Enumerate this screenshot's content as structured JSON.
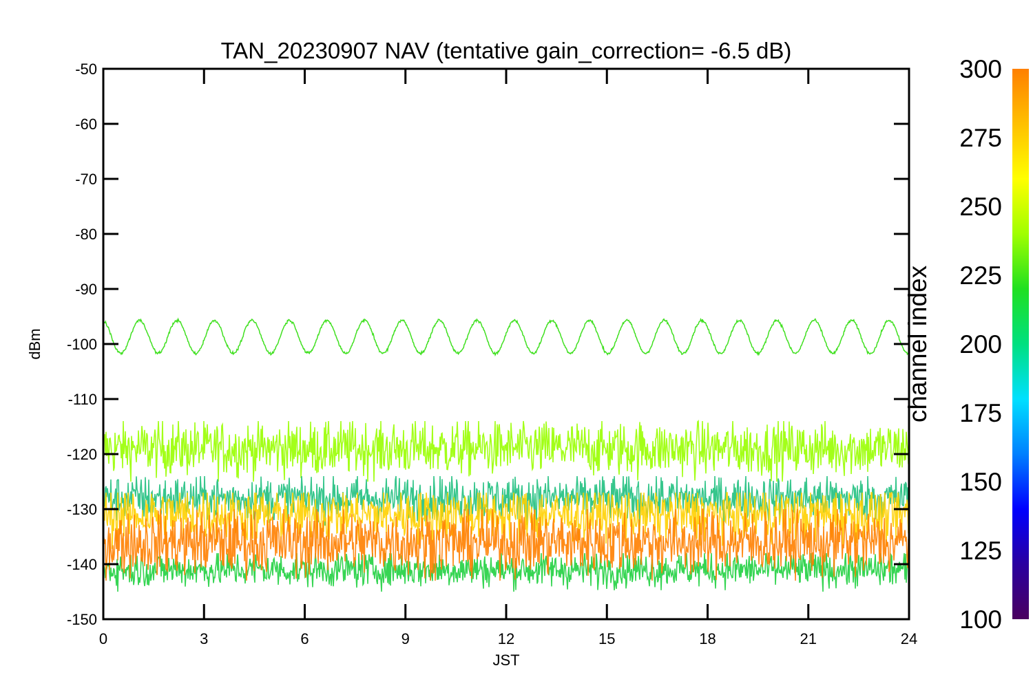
{
  "chart_data": {
    "type": "line",
    "title": "TAN_20230907 NAV (tentative gain_correction= -6.5 dB)",
    "xlabel": "JST",
    "ylabel": "dBm",
    "xlim": [
      0,
      24
    ],
    "ylim": [
      -150,
      -50
    ],
    "x_ticks": [
      "0",
      "3",
      "6",
      "9",
      "12",
      "15",
      "18",
      "21",
      "24"
    ],
    "y_ticks": [
      "-50",
      "-60",
      "-70",
      "-80",
      "-90",
      "-100",
      "-110",
      "-120",
      "-130",
      "-140",
      "-150"
    ],
    "grid": false,
    "colorbar": {
      "label": "channel index",
      "range": [
        100,
        300
      ],
      "ticks": [
        "300",
        "275",
        "250",
        "225",
        "200",
        "175",
        "150",
        "125",
        "100"
      ],
      "colormap": [
        "#4b0060",
        "#2a00a0",
        "#0000ff",
        "#0080ff",
        "#00e0ff",
        "#00e080",
        "#20e020",
        "#a0ff00",
        "#ffff00",
        "#ffc000",
        "#ff8000"
      ]
    },
    "series": [
      {
        "color": "#40e020",
        "pattern": "sinusoid",
        "mean_dbm": -98.7,
        "amplitude_db": 3,
        "cycles": 21.5,
        "x_range": [
          0,
          24
        ]
      },
      {
        "color": "#99ff00",
        "pattern": "noise band",
        "center_dbm": -119,
        "range_dbm": [
          -125,
          -114
        ]
      },
      {
        "color": "#20c080",
        "pattern": "noise band",
        "center_dbm": -128,
        "range_dbm": [
          -133,
          -124
        ]
      },
      {
        "color": "#ffd000",
        "pattern": "noise band",
        "center_dbm": -131,
        "range_dbm": [
          -138,
          -127
        ]
      },
      {
        "color": "#20d040",
        "pattern": "noise band",
        "center_dbm": -141,
        "range_dbm": [
          -145,
          -138
        ]
      },
      {
        "color": "#ff8000",
        "pattern": "noise band",
        "center_dbm": -136,
        "range_dbm": [
          -143,
          -130
        ]
      }
    ]
  }
}
